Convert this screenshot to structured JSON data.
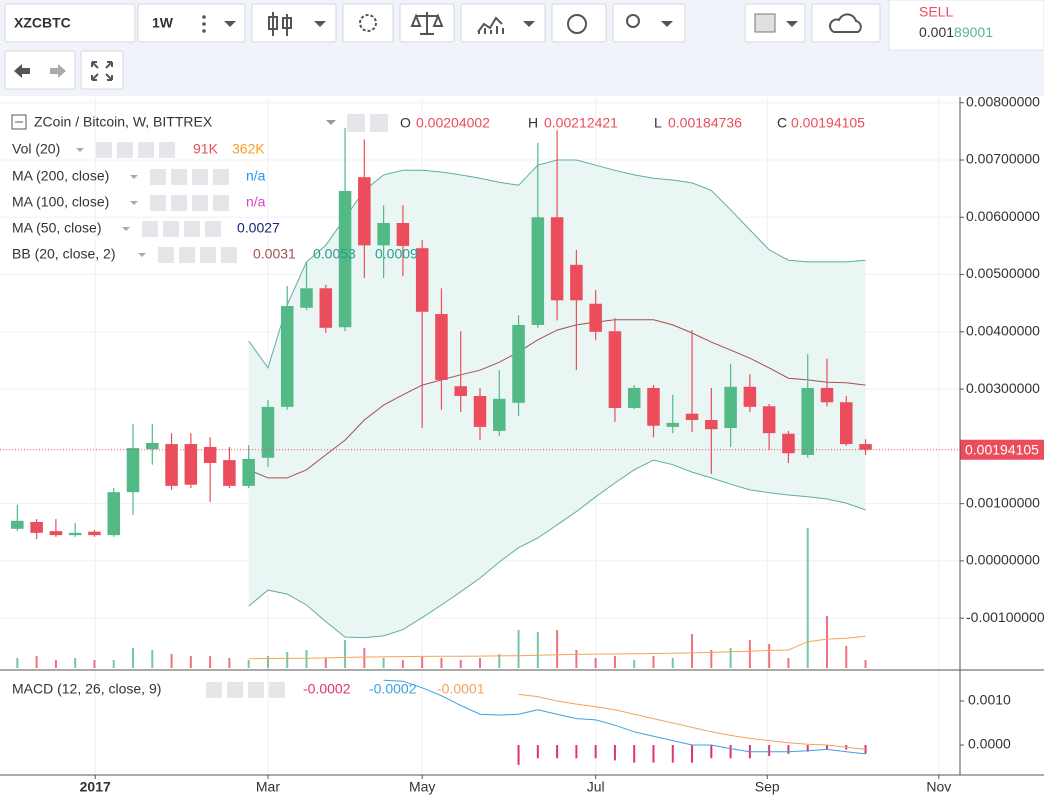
{
  "toolbar": {
    "symbol": "XZCBTC",
    "interval": "1W",
    "sell_label": "SELL",
    "sell_price": [
      "0.001",
      "89001"
    ]
  },
  "legend": {
    "title": "ZCoin / Bitcoin, W, BITTREX",
    "indicators": [
      {
        "label": "Vol (20)",
        "values": [
          "91K",
          "362K"
        ]
      },
      {
        "label": "MA (200, close)",
        "values": [
          "n/a"
        ]
      },
      {
        "label": "MA (100, close)",
        "values": [
          "n/a"
        ]
      },
      {
        "label": "MA (50, close)",
        "values": [
          "0.0027"
        ]
      },
      {
        "label": "BB (20, close, 2)",
        "values": [
          "0.0031",
          "0.0053",
          "0.0009"
        ]
      }
    ],
    "macd_label": "MACD (12, 26, close, 9)",
    "macd_values": [
      "-0.0002",
      "-0.0002",
      "-0.0001"
    ]
  },
  "chart_data": [
    {
      "type": "candlestick",
      "categories": [
        null,
        null,
        null,
        null,
        null,
        null,
        null,
        null,
        null,
        null,
        null,
        null,
        null,
        null,
        null,
        null,
        null,
        null,
        null,
        null,
        null,
        null,
        null,
        null,
        null,
        null,
        null,
        null,
        null,
        null,
        null,
        null,
        null,
        null,
        null,
        null,
        null,
        null,
        null,
        null,
        null,
        null,
        null,
        null,
        null
      ],
      "up_color": "#53b987",
      "down_color": "#eb4d5c",
      "series": [
        {
          "name": "O",
          "values": [
            0.00056,
            0.00068,
            0.00052,
            0.00045,
            0.00051,
            0.00045,
            0.0012,
            0.00195,
            0.00204,
            0.00204,
            0.00199,
            0.00176,
            0.00131,
            0.0018,
            0.00269,
            0.00442,
            0.00476,
            0.00408,
            0.0067,
            0.00551,
            0.0059,
            0.00546,
            0.00431,
            0.00305,
            0.00288,
            0.00227,
            0.00276,
            0.00412,
            0.006,
            0.00517,
            0.00449,
            0.00401,
            0.00267,
            0.00302,
            0.00234,
            0.00257,
            0.00246,
            0.00232,
            0.00304,
            0.0027,
            0.00222,
            0.00185,
            0.00302,
            0.00277,
            0.00204002
          ]
        },
        {
          "name": "H",
          "values": [
            0.00098,
            0.00073,
            0.00073,
            0.00066,
            0.00054,
            0.00127,
            0.00239,
            0.00239,
            0.00223,
            0.00223,
            0.00216,
            0.00199,
            0.00202,
            0.00281,
            0.0048,
            0.00522,
            0.00482,
            0.00756,
            0.00736,
            0.00621,
            0.00621,
            0.0056,
            0.00476,
            0.00401,
            0.00302,
            0.00333,
            0.00429,
            0.0073,
            0.00752,
            0.00543,
            0.00473,
            0.00424,
            0.00307,
            0.00307,
            0.0029,
            0.00403,
            0.00302,
            0.00344,
            0.00326,
            0.00274,
            0.00227,
            0.00361,
            0.00353,
            0.00288,
            0.00212421
          ]
        },
        {
          "name": "L",
          "values": [
            0.00052,
            0.00038,
            0.00042,
            0.00042,
            0.00042,
            0.00042,
            0.0008,
            0.00168,
            0.00124,
            0.00127,
            0.00103,
            0.00127,
            0.00127,
            0.00164,
            0.00264,
            0.00438,
            0.00398,
            0.00401,
            0.00494,
            0.00494,
            0.00497,
            0.00232,
            0.00264,
            0.0026,
            0.00211,
            0.00218,
            0.00253,
            0.00407,
            0.0042,
            0.00333,
            0.00386,
            0.00243,
            0.00265,
            0.00216,
            0.00223,
            0.00225,
            0.00152,
            0.00199,
            0.0026,
            0.00194,
            0.00171,
            0.0018,
            0.0027,
            0.00201,
            0.00184736
          ]
        },
        {
          "name": "C",
          "values": [
            0.0007,
            0.00049,
            0.00045,
            0.00049,
            0.00045,
            0.0012,
            0.00197,
            0.00206,
            0.00131,
            0.00133,
            0.00171,
            0.00131,
            0.00178,
            0.00269,
            0.00445,
            0.00476,
            0.00407,
            0.00646,
            0.00551,
            0.0059,
            0.0055,
            0.00435,
            0.00316,
            0.00288,
            0.00234,
            0.00283,
            0.00412,
            0.006,
            0.00455,
            0.00455,
            0.004,
            0.00267,
            0.00302,
            0.00236,
            0.00241,
            0.00246,
            0.0023,
            0.00304,
            0.00269,
            0.00223,
            0.00188,
            0.00302,
            0.00277,
            0.00204,
            0.00194105
          ]
        }
      ],
      "bb": {
        "color": "#5fae9f",
        "basis_color": "#a0524f",
        "fill": "#eaf6f3",
        "upper": [
          null,
          null,
          null,
          null,
          null,
          null,
          null,
          null,
          null,
          null,
          null,
          null,
          0.00384,
          0.00337,
          0.00447,
          0.00522,
          0.00551,
          0.00599,
          0.00647,
          0.00674,
          0.00682,
          0.00682,
          0.00679,
          0.00674,
          0.00668,
          0.00661,
          0.00656,
          0.00691,
          0.007,
          0.007,
          0.00691,
          0.00682,
          0.00674,
          0.00668,
          0.00665,
          0.0066,
          0.00647,
          0.00613,
          0.00578,
          0.00543,
          0.00525,
          0.00522,
          0.00522,
          0.00522,
          0.00525
        ],
        "basis": [
          null,
          null,
          null,
          null,
          null,
          null,
          null,
          null,
          null,
          null,
          null,
          null,
          0.00159,
          0.00145,
          0.00145,
          0.00159,
          0.00185,
          0.00211,
          0.00246,
          0.00272,
          0.0029,
          0.00307,
          0.00316,
          0.00325,
          0.00333,
          0.00347,
          0.00365,
          0.00386,
          0.00403,
          0.00412,
          0.00417,
          0.00421,
          0.00421,
          0.00421,
          0.00412,
          0.00398,
          0.00382,
          0.00368,
          0.00354,
          0.00337,
          0.00319,
          0.00316,
          0.00312,
          0.00311,
          0.00307
        ],
        "lower": [
          null,
          null,
          null,
          null,
          null,
          null,
          null,
          null,
          null,
          null,
          null,
          null,
          -0.00079,
          -0.00051,
          -0.00058,
          -0.00077,
          -0.00106,
          -0.00133,
          -0.00134,
          -0.00131,
          -0.0012,
          -0.00099,
          -0.00077,
          -0.00054,
          -0.0003,
          -2e-05,
          0.00023,
          0.0004,
          0.00063,
          0.00086,
          0.00112,
          0.00136,
          0.00159,
          0.00176,
          0.00168,
          0.00155,
          0.00145,
          0.00134,
          0.00124,
          0.00119,
          0.00115,
          0.00112,
          0.00108,
          0.00101,
          0.00089
        ]
      },
      "volume": [
        114000,
        137000,
        91000,
        114000,
        91000,
        91000,
        228000,
        205000,
        160000,
        137000,
        137000,
        114000,
        91000,
        137000,
        182000,
        205000,
        114000,
        319000,
        228000,
        114000,
        91000,
        137000,
        114000,
        91000,
        114000,
        160000,
        433000,
        410000,
        433000,
        205000,
        114000,
        137000,
        91000,
        137000,
        114000,
        388000,
        205000,
        228000,
        319000,
        274000,
        114000,
        1596000,
        593000,
        251000,
        91000
      ],
      "volume_ma": [
        null,
        null,
        null,
        null,
        null,
        null,
        null,
        null,
        null,
        null,
        null,
        null,
        105000,
        108000,
        110000,
        112000,
        115000,
        120000,
        125000,
        128000,
        130000,
        132000,
        133000,
        135000,
        136000,
        138000,
        140000,
        145000,
        150000,
        155000,
        158000,
        160000,
        162000,
        165000,
        168000,
        172000,
        178000,
        185000,
        192000,
        200000,
        205000,
        300000,
        330000,
        340000,
        362000
      ],
      "volume_ma_color": "#f7a35c",
      "ylim": [
        -0.00187,
        0.0081
      ],
      "yticks": [
        {
          "value": 0.008,
          "label": "0.00800000"
        },
        {
          "value": 0.007,
          "label": "0.00700000"
        },
        {
          "value": 0.006,
          "label": "0.00600000"
        },
        {
          "value": 0.005,
          "label": "0.00500000"
        },
        {
          "value": 0.004,
          "label": "0.00400000"
        },
        {
          "value": 0.003,
          "label": "0.00300000"
        },
        {
          "value": 0.001,
          "label": "0.00100000"
        },
        {
          "value": 0,
          "label": "0.00000000"
        },
        {
          "value": -0.001,
          "label": "-0.00100000"
        }
      ],
      "xlim": [
        -0.9,
        48.9
      ],
      "xticks": [
        {
          "value": 4.04,
          "label": "2017"
        },
        {
          "value": 13,
          "label": "Mar"
        },
        {
          "value": 21,
          "label": "May"
        },
        {
          "value": 30,
          "label": "Jul"
        },
        {
          "value": 38.9,
          "label": "Sep"
        },
        {
          "value": 47.8,
          "label": "Nov"
        }
      ],
      "grid": true
    },
    {
      "type": "macd",
      "macd": [
        null,
        null,
        null,
        null,
        null,
        null,
        null,
        null,
        null,
        null,
        null,
        null,
        null,
        null,
        null,
        null,
        null,
        null,
        null,
        0.00147,
        0.00145,
        0.0013,
        0.00112,
        0.0009,
        0.0007,
        0.00068,
        0.0007,
        0.0008,
        0.0007,
        0.0006,
        0.00057,
        0.00045,
        0.0003,
        0.0002,
        0.0001,
        0,
        0,
        -8e-05,
        -0.00015,
        -0.00015,
        -0.00015,
        -0.00013,
        -0.0001,
        -0.00015,
        -0.0002
      ],
      "signal": [
        null,
        null,
        null,
        null,
        null,
        null,
        null,
        null,
        null,
        null,
        null,
        null,
        null,
        null,
        null,
        null,
        null,
        null,
        null,
        null,
        null,
        null,
        null,
        null,
        null,
        null,
        0.00115,
        0.0011,
        0.001,
        0.00093,
        0.00087,
        0.0008,
        0.0007,
        0.0006,
        0.0005,
        0.0004,
        0.0003,
        0.00022,
        0.00015,
        0.0001,
        5e-05,
        2e-05,
        0,
        -5e-05,
        -0.0001
      ],
      "histogram": [
        null,
        null,
        null,
        null,
        null,
        null,
        null,
        null,
        null,
        null,
        null,
        null,
        null,
        null,
        null,
        null,
        null,
        null,
        null,
        null,
        null,
        null,
        null,
        null,
        null,
        null,
        -0.00045,
        -0.0003,
        -0.0003,
        -0.0003,
        -0.0003,
        -0.00035,
        -0.0004,
        -0.0004,
        -0.0004,
        -0.0004,
        -0.0003,
        -0.0003,
        -0.0003,
        -0.00025,
        -0.0002,
        -0.00015,
        -0.0001,
        -0.0001,
        -0.0002
      ],
      "macd_color": "#3ca0e0",
      "signal_color": "#f5a45a",
      "histogram_color": "#e0307a",
      "ylim": [
        -0.00068,
        0.00159
      ],
      "yticks": [
        {
          "value": 0.001,
          "label": "0.0010"
        },
        {
          "value": 0,
          "label": "0.0000"
        }
      ]
    }
  ]
}
